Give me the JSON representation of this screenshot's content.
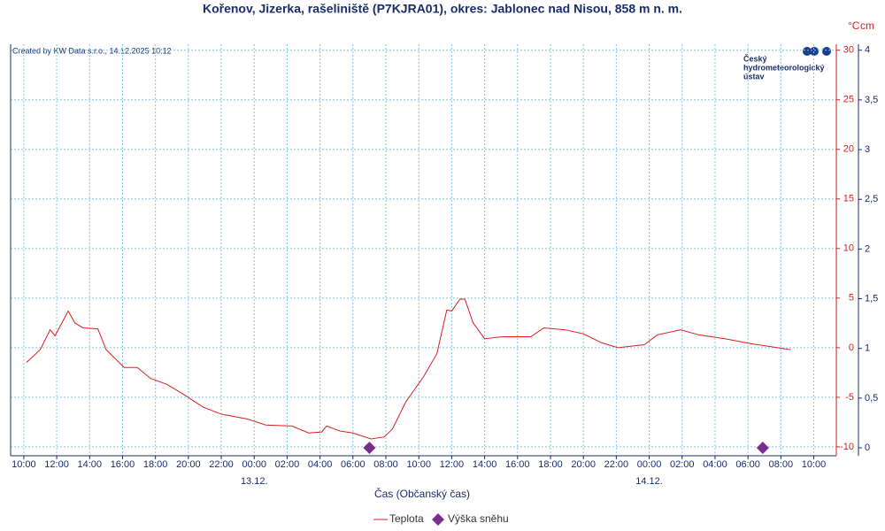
{
  "chart_data": {
    "type": "line",
    "title": "Kořenov, Jizerka, rašeliniště (P7KJRA01), okres: Jablonec nad Nisou, 858 m n. m.",
    "credit": "Created by KW Data s.r.o., 14.12.2025 10:12",
    "logo": [
      "Český",
      "hydrometeorologický",
      "ústav"
    ],
    "x_label": "Čas (Občanský čas)",
    "y_label": "°C",
    "y2_label": "cm",
    "dates": [
      {
        "value": 14,
        "label": "13.12."
      },
      {
        "value": 38,
        "label": "14.12."
      }
    ],
    "xlim": [
      -0.8,
      49.1
    ],
    "xticks": [
      {
        "value": 0,
        "label": "10:00"
      },
      {
        "value": 2,
        "label": "12:00"
      },
      {
        "value": 4,
        "label": "14:00"
      },
      {
        "value": 6,
        "label": "16:00"
      },
      {
        "value": 8,
        "label": "18:00"
      },
      {
        "value": 10,
        "label": "20:00"
      },
      {
        "value": 12,
        "label": "22:00"
      },
      {
        "value": 14,
        "label": "00:00"
      },
      {
        "value": 16,
        "label": "02:00"
      },
      {
        "value": 18,
        "label": "04:00"
      },
      {
        "value": 20,
        "label": "06:00"
      },
      {
        "value": 22,
        "label": "08:00"
      },
      {
        "value": 24,
        "label": "10:00"
      },
      {
        "value": 26,
        "label": "12:00"
      },
      {
        "value": 28,
        "label": "14:00"
      },
      {
        "value": 30,
        "label": "16:00"
      },
      {
        "value": 32,
        "label": "18:00"
      },
      {
        "value": 34,
        "label": "20:00"
      },
      {
        "value": 36,
        "label": "22:00"
      },
      {
        "value": 38,
        "label": "00:00"
      },
      {
        "value": 40,
        "label": "02:00"
      },
      {
        "value": 42,
        "label": "04:00"
      },
      {
        "value": 44,
        "label": "06:00"
      },
      {
        "value": 46,
        "label": "08:00"
      },
      {
        "value": 48,
        "label": "10:00"
      }
    ],
    "ylim": [
      -10.9,
      30.6
    ],
    "yticks": [
      30,
      25,
      20,
      15,
      10,
      5,
      0,
      -5,
      -10
    ],
    "y2lim": [
      -0.08,
      4.06
    ],
    "y2ticks": [
      4,
      {
        "value": 3.5,
        "label": "3,5"
      },
      3,
      {
        "value": 2.5,
        "label": "2,5"
      },
      2,
      {
        "value": 1.5,
        "label": "1,5"
      },
      1,
      {
        "value": 0.5,
        "label": "0,5"
      },
      0
    ],
    "grid": true,
    "series": [
      {
        "name": "Teplota",
        "color": "#d62020",
        "axis": "y",
        "x": [
          0.16,
          1,
          1.6,
          1.9,
          2.7,
          3.1,
          3.6,
          4.5,
          5,
          6.1,
          6.9,
          7.7,
          8.7,
          9.8,
          10.9,
          12,
          13.6,
          14.7,
          16.3,
          17.3,
          18.1,
          18.4,
          19.2,
          20,
          21.1,
          21.9,
          22.4,
          23.2,
          24.3,
          25.1,
          25.7,
          26,
          26.5,
          26.8,
          27.3,
          28,
          29.1,
          30.8,
          31.6,
          32.9,
          34,
          35.1,
          36.1,
          37.7,
          38.5,
          39.9,
          41,
          42.6,
          44.2,
          45.8,
          46.6
        ],
        "values": [
          -1.5,
          -0.2,
          1.8,
          1.2,
          3.7,
          2.5,
          2.0,
          1.9,
          -0.2,
          -2.0,
          -2.0,
          -3.1,
          -3.7,
          -4.8,
          -6.0,
          -6.7,
          -7.2,
          -7.8,
          -7.9,
          -8.6,
          -8.5,
          -7.9,
          -8.4,
          -8.6,
          -9.2,
          -9.0,
          -8.2,
          -5.5,
          -2.9,
          -0.6,
          3.8,
          3.7,
          4.9,
          4.9,
          2.5,
          0.9,
          1.1,
          1.1,
          2.0,
          1.8,
          1.4,
          0.5,
          0,
          0.3,
          1.3,
          1.8,
          1.3,
          0.9,
          0.4,
          0,
          -0.2
        ]
      },
      {
        "name": "Výška sněhu",
        "color": "#7b2d8e",
        "axis": "y2",
        "x": [
          21,
          44.9
        ],
        "values": [
          0,
          0
        ]
      }
    ]
  }
}
